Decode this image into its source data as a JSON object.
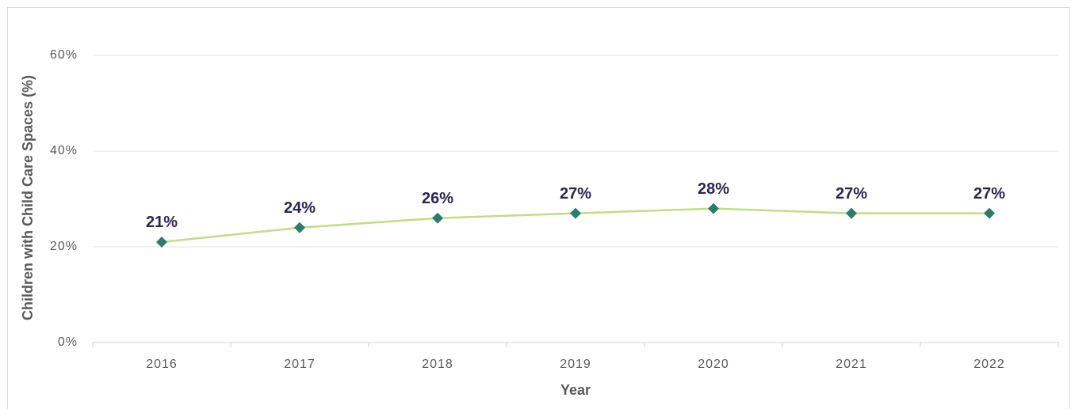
{
  "chart_data": {
    "type": "line",
    "x_label": "Year",
    "y_label": "Children with Child Care Spaces (%)",
    "categories": [
      "2016",
      "2017",
      "2018",
      "2019",
      "2020",
      "2021",
      "2022"
    ],
    "values": [
      21,
      24,
      26,
      27,
      28,
      27,
      27
    ],
    "value_labels": [
      "21%",
      "24%",
      "26%",
      "27%",
      "28%",
      "27%",
      "27%"
    ],
    "color": "#c3dc85",
    "marker_color": "#2a7d6e",
    "ylim": [
      0,
      60
    ],
    "yticks": [
      {
        "value": 0,
        "label": "0%"
      },
      {
        "value": 20,
        "label": "20%"
      },
      {
        "value": 40,
        "label": "40%"
      },
      {
        "value": 60,
        "label": "60%"
      }
    ],
    "grid": true
  }
}
